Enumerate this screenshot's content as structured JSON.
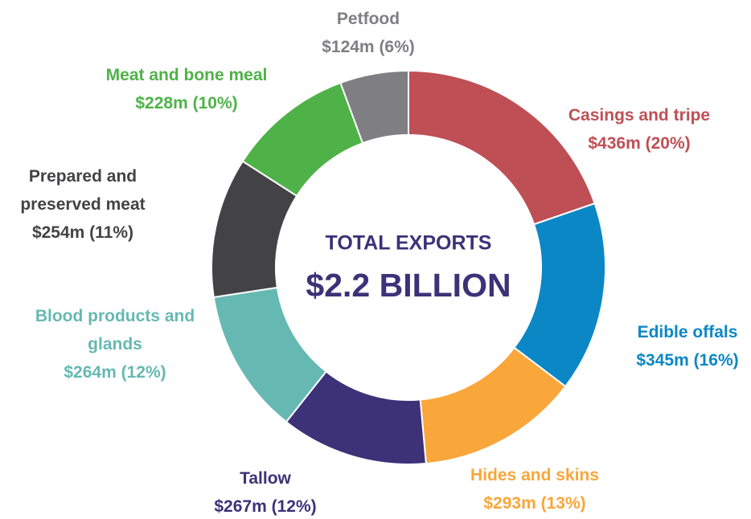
{
  "chart_data": {
    "type": "donut",
    "categories": [
      "Casings and tripe",
      "Edible offals",
      "Hides and skins",
      "Tallow",
      "Blood products and glands",
      "Prepared and preserved meat",
      "Meat and bone meal",
      "Petfood"
    ],
    "values": [
      436,
      345,
      293,
      267,
      264,
      254,
      228,
      124
    ],
    "value_labels": [
      "$436m (20%)",
      "$345m (16%)",
      "$293m (13%)",
      "$267m (12%)",
      "$264m (12%)",
      "$254m (11%)",
      "$228m (10%)",
      "$124m (6%)"
    ],
    "colors": [
      "#be4f55",
      "#0c87c6",
      "#f9a63b",
      "#3d3178",
      "#66b9b2",
      "#434345",
      "#4fb248",
      "#7f7f83"
    ],
    "annotations": [
      "TOTAL EXPORTS",
      "$2.2 BILLION"
    ]
  }
}
